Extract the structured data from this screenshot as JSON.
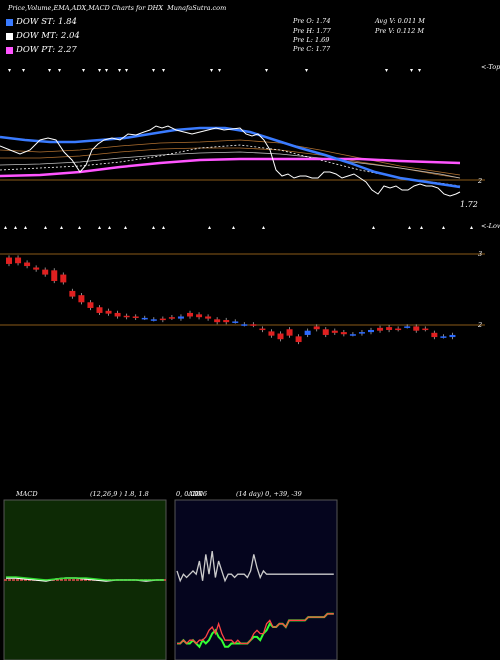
{
  "header": {
    "title": "Price,Volume,EMA,ADX,MACD Charts for DHX",
    "site": "MunafaSutra.com"
  },
  "legend": [
    {
      "label": "DOW ST: 1.84",
      "color": "#3a7bff"
    },
    {
      "label": "DOW MT: 2.04",
      "color": "#ffffff"
    },
    {
      "label": "DOW PT: 2.27",
      "color": "#ff55ff"
    }
  ],
  "quote": {
    "open": "Pre   O: 1.74",
    "high": "Pre   H: 1.77",
    "low": "Pre   L: 1.69",
    "close": "Pre   C: 1.77",
    "avg_volume": "Avg V: 0.011 M",
    "pre_volume": "Pre   V: 0.112  M"
  },
  "labels": {
    "tops": "<-Tops",
    "lows": "<-Lows",
    "level_2": "2",
    "level_3": "3",
    "level_2b": "2",
    "last_price": "1.72"
  },
  "macd": {
    "label": "MACD",
    "params": "(12,26,9 ) 1.8,  1.8",
    "value": "0, 0.0006"
  },
  "adx": {
    "label": "ADX",
    "params": "(14  day) 0,  +39,  -39"
  },
  "chart_data": [
    {
      "type": "candlestick",
      "title": "Price",
      "candles": [
        {
          "o": 2.95,
          "c": 2.86
        },
        {
          "o": 2.95,
          "c": 2.87
        },
        {
          "o": 2.88,
          "c": 2.83
        },
        {
          "o": 2.81,
          "c": 2.78
        },
        {
          "o": 2.78,
          "c": 2.71
        },
        {
          "o": 2.77,
          "c": 2.62
        },
        {
          "o": 2.71,
          "c": 2.6
        },
        {
          "o": 2.48,
          "c": 2.4
        },
        {
          "o": 2.42,
          "c": 2.32
        },
        {
          "o": 2.32,
          "c": 2.24
        },
        {
          "o": 2.25,
          "c": 2.17
        },
        {
          "o": 2.2,
          "c": 2.16
        },
        {
          "o": 2.17,
          "c": 2.12
        },
        {
          "o": 2.13,
          "c": 2.11
        },
        {
          "o": 2.12,
          "c": 2.1
        },
        {
          "o": 2.1,
          "c": 2.1
        },
        {
          "o": 2.08,
          "c": 2.08
        },
        {
          "o": 2.09,
          "c": 2.07
        },
        {
          "o": 2.11,
          "c": 2.1
        },
        {
          "o": 2.09,
          "c": 2.12
        },
        {
          "o": 2.17,
          "c": 2.12
        },
        {
          "o": 2.15,
          "c": 2.11
        },
        {
          "o": 2.12,
          "c": 2.09
        },
        {
          "o": 2.08,
          "c": 2.04
        },
        {
          "o": 2.07,
          "c": 2.04
        },
        {
          "o": 2.05,
          "c": 2.05
        },
        {
          "o": 2.01,
          "c": 2.01
        },
        {
          "o": 2.01,
          "c": 2.0
        },
        {
          "o": 1.95,
          "c": 1.93
        },
        {
          "o": 1.91,
          "c": 1.85
        },
        {
          "o": 1.88,
          "c": 1.8
        },
        {
          "o": 1.94,
          "c": 1.85
        },
        {
          "o": 1.84,
          "c": 1.76
        },
        {
          "o": 1.86,
          "c": 1.92
        },
        {
          "o": 1.98,
          "c": 1.94
        },
        {
          "o": 1.94,
          "c": 1.86
        },
        {
          "o": 1.92,
          "c": 1.89
        },
        {
          "o": 1.9,
          "c": 1.87
        },
        {
          "o": 1.87,
          "c": 1.87
        },
        {
          "o": 1.88,
          "c": 1.9
        },
        {
          "o": 1.9,
          "c": 1.93
        },
        {
          "o": 1.96,
          "c": 1.92
        },
        {
          "o": 1.97,
          "c": 1.93
        },
        {
          "o": 1.95,
          "c": 1.94
        },
        {
          "o": 1.98,
          "c": 1.98
        },
        {
          "o": 1.98,
          "c": 1.92
        },
        {
          "o": 1.95,
          "c": 1.94
        },
        {
          "o": 1.89,
          "c": 1.83
        },
        {
          "o": 1.84,
          "c": 1.84
        },
        {
          "o": 1.83,
          "c": 1.86
        }
      ]
    },
    {
      "type": "line",
      "title": "MACD",
      "series": [
        {
          "values": [
            0.0,
            0.0,
            -0.01,
            -0.01,
            0.0,
            0.0,
            0.0,
            -0.01,
            -0.01,
            0.0,
            0.0,
            0.0,
            -0.01,
            0.0,
            0.0,
            0.0,
            0.0,
            0.0,
            0.0,
            0.0
          ]
        },
        {
          "values": [
            0.0,
            0.0,
            0.0,
            0.0,
            0.0,
            0.0,
            0.0,
            0.0,
            0.0,
            0.0,
            0.0,
            0.0,
            0.0,
            0.0,
            0.0,
            0.0,
            0.0,
            0.0,
            0.0,
            0.0
          ]
        }
      ]
    },
    {
      "type": "line",
      "title": "ADX",
      "series": [
        {
          "values": [
            27,
            24,
            26,
            25,
            26,
            27,
            26,
            30,
            24,
            32,
            26,
            33,
            25,
            30,
            27,
            24,
            26,
            26,
            25,
            26,
            26,
            26,
            25,
            27,
            32,
            28,
            25,
            27,
            26,
            26,
            26,
            26,
            26,
            26,
            26,
            26,
            26,
            26,
            26,
            26,
            26,
            26,
            26,
            26,
            26,
            26,
            26,
            26,
            26,
            26
          ]
        },
        {
          "values": [
            5,
            5,
            6,
            5,
            5,
            6,
            5,
            4,
            6,
            5,
            6,
            8,
            9,
            7,
            6,
            4,
            4,
            5,
            5,
            5,
            5,
            5,
            5,
            6,
            7,
            7,
            6,
            8,
            9,
            11,
            10,
            10,
            11,
            11,
            10,
            12,
            12,
            12,
            12,
            12,
            12,
            13,
            13,
            13,
            13,
            13,
            13,
            14,
            14,
            14
          ]
        },
        {
          "values": [
            5,
            5,
            6,
            5,
            6,
            6,
            5,
            6,
            6,
            7,
            9,
            10,
            8,
            11,
            8,
            6,
            6,
            6,
            5,
            6,
            5,
            5,
            5,
            6,
            8,
            9,
            8,
            8,
            11,
            12,
            10,
            10,
            11,
            11,
            10,
            12,
            12,
            12,
            12,
            12,
            12,
            13,
            13,
            13,
            13,
            13,
            13,
            14,
            14,
            14
          ]
        }
      ]
    }
  ]
}
